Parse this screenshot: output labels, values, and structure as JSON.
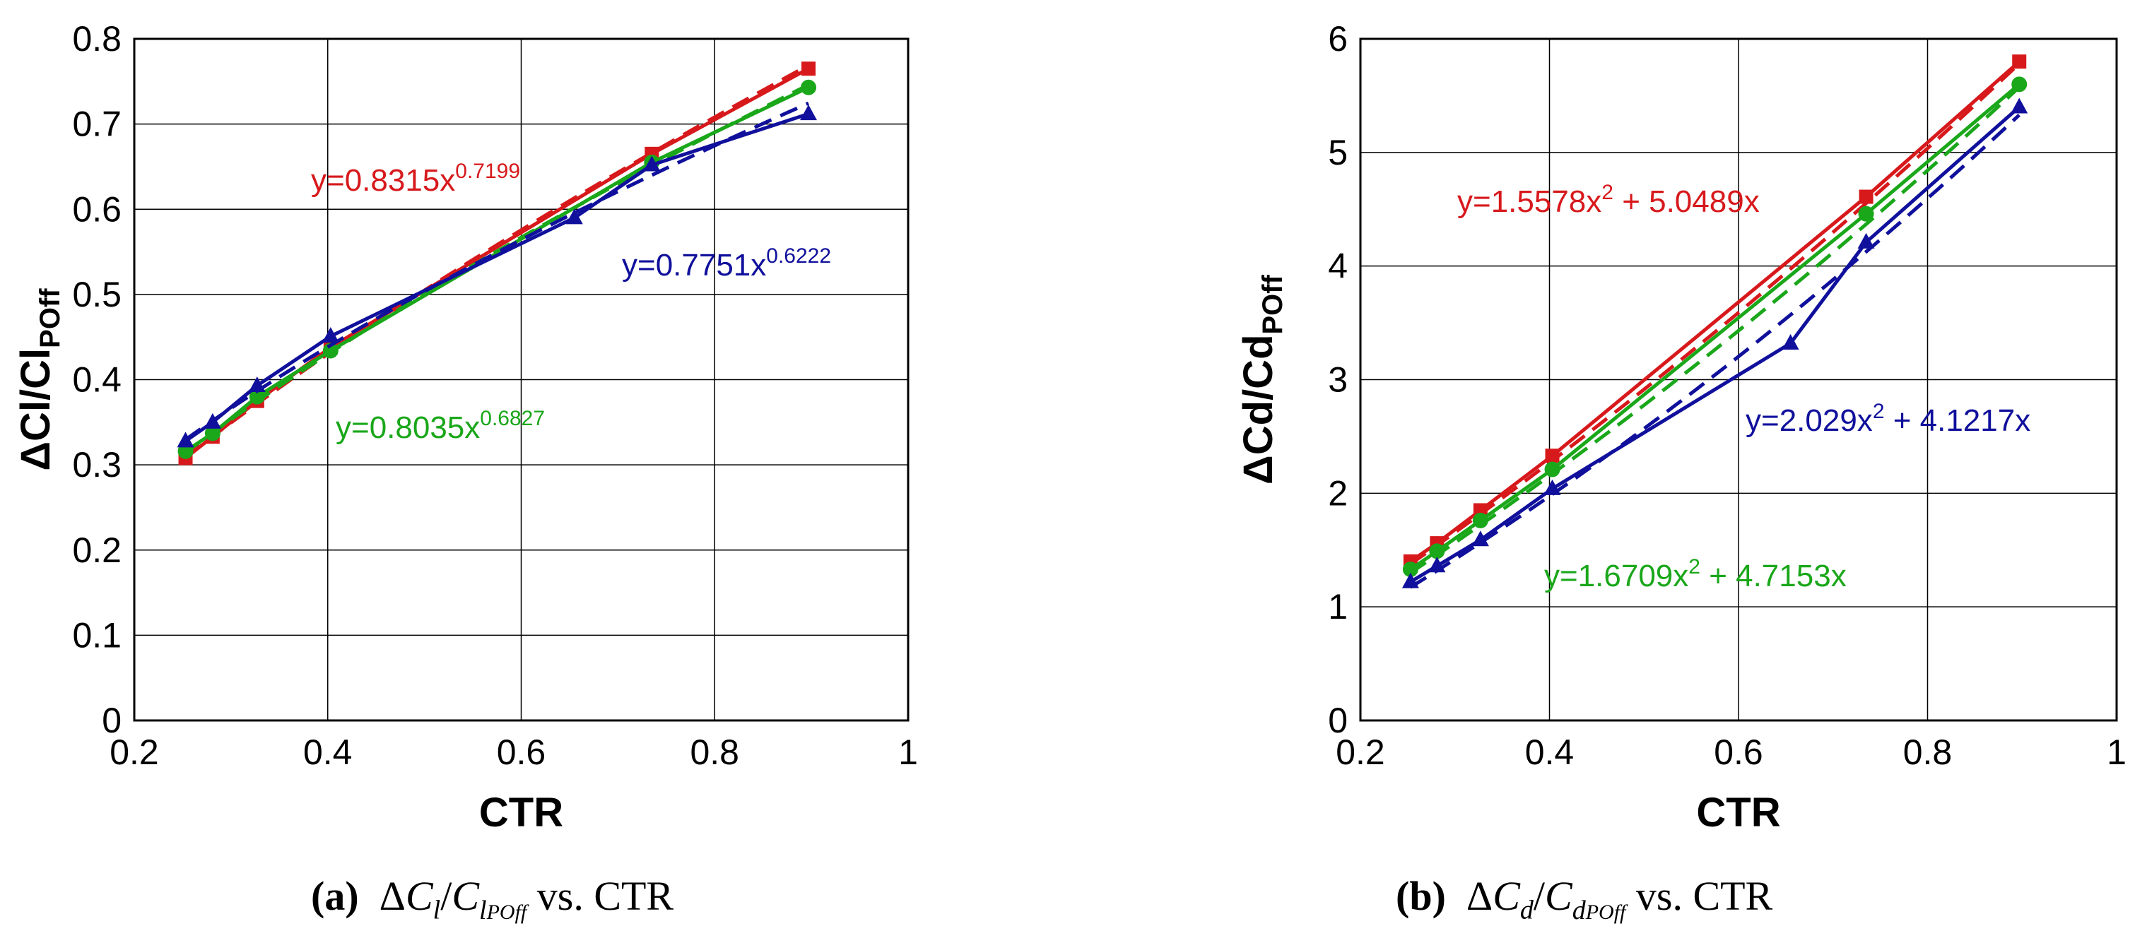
{
  "chart_data": [
    {
      "type": "line",
      "xlabel": "CTR",
      "ylabel_main": "ΔCl/Cl",
      "ylabel_sub": "POff",
      "xlim": [
        0.2,
        1
      ],
      "ylim": [
        0,
        0.8
      ],
      "xticks": [
        "0.2",
        "0.4",
        "0.6",
        "0.8",
        "1"
      ],
      "xtick_values": [
        0.2,
        0.4,
        0.6,
        0.8,
        1.0
      ],
      "yticks": [
        "0",
        "0.1",
        "0.2",
        "0.3",
        "0.4",
        "0.5",
        "0.6",
        "0.7",
        "0.8"
      ],
      "ytick_values": [
        0,
        0.1,
        0.2,
        0.3,
        0.4,
        0.5,
        0.6,
        0.7,
        0.8
      ],
      "grid": true,
      "series": [
        {
          "name": "red",
          "color": "#d7191c",
          "marker": "square",
          "x": [
            0.253,
            0.281,
            0.327,
            0.403,
            0.735,
            0.897
          ],
          "y": [
            0.308,
            0.333,
            0.375,
            0.438,
            0.665,
            0.765
          ],
          "fit": {
            "kind": "power",
            "a": 0.8315,
            "b": 0.7199
          },
          "label": {
            "prefix": "y=0.8315x",
            "exp": "0.7199"
          }
        },
        {
          "name": "green",
          "color": "#1aa71a",
          "marker": "circle",
          "x": [
            0.253,
            0.281,
            0.327,
            0.403,
            0.735,
            0.897
          ],
          "y": [
            0.316,
            0.337,
            0.38,
            0.434,
            0.655,
            0.743
          ],
          "fit": {
            "kind": "power",
            "a": 0.8035,
            "b": 0.6827
          },
          "label": {
            "prefix": "y=0.8035x",
            "exp": "0.6827"
          }
        },
        {
          "name": "blue",
          "color": "#10109c",
          "marker": "triangle",
          "x": [
            0.253,
            0.281,
            0.327,
            0.403,
            0.655,
            0.735,
            0.897
          ],
          "y": [
            0.328,
            0.35,
            0.393,
            0.451,
            0.59,
            0.652,
            0.712
          ],
          "fit": {
            "kind": "power",
            "a": 0.7751,
            "b": 0.6222
          },
          "label": {
            "prefix": "y=0.7751x",
            "exp": "0.6222"
          }
        }
      ],
      "caption": {
        "letter": "(a)",
        "text_suffix": "vs. CTR"
      }
    },
    {
      "type": "line",
      "xlabel": "CTR",
      "ylabel_main": "ΔCd/Cd",
      "ylabel_sub": "POff",
      "xlim": [
        0.2,
        1
      ],
      "ylim": [
        0,
        6
      ],
      "xticks": [
        "0.2",
        "0.4",
        "0.6",
        "0.8",
        "1"
      ],
      "xtick_values": [
        0.2,
        0.4,
        0.6,
        0.8,
        1.0
      ],
      "yticks": [
        "0",
        "1",
        "2",
        "3",
        "4",
        "5",
        "6"
      ],
      "ytick_values": [
        0,
        1,
        2,
        3,
        4,
        5,
        6
      ],
      "grid": true,
      "series": [
        {
          "name": "red",
          "color": "#d7191c",
          "marker": "square",
          "x": [
            0.253,
            0.281,
            0.327,
            0.403,
            0.735,
            0.897
          ],
          "y": [
            1.4,
            1.56,
            1.85,
            2.33,
            4.61,
            5.8
          ],
          "fit": {
            "kind": "quadratic",
            "a": 1.5578,
            "b": 5.0489
          },
          "label": {
            "prefix": "y=1.5578x",
            "exp": "2",
            "suffix": " + 5.0489x"
          }
        },
        {
          "name": "green",
          "color": "#1aa71a",
          "marker": "circle",
          "x": [
            0.253,
            0.281,
            0.327,
            0.403,
            0.735,
            0.897
          ],
          "y": [
            1.33,
            1.49,
            1.76,
            2.21,
            4.46,
            5.6
          ],
          "fit": {
            "kind": "quadratic",
            "a": 1.6709,
            "b": 4.7153
          },
          "label": {
            "prefix": "y=1.6709x",
            "exp": "2",
            "suffix": " + 4.7153x"
          }
        },
        {
          "name": "blue",
          "color": "#10109c",
          "marker": "triangle",
          "x": [
            0.253,
            0.281,
            0.327,
            0.403,
            0.655,
            0.735,
            0.897
          ],
          "y": [
            1.22,
            1.36,
            1.59,
            2.04,
            3.32,
            4.21,
            5.4
          ],
          "fit": {
            "kind": "quadratic",
            "a": 2.029,
            "b": 4.1217
          },
          "label": {
            "prefix": "y=2.029x",
            "exp": "2",
            "suffix": " + 4.1217x"
          }
        }
      ],
      "caption": {
        "letter": "(b)",
        "text_suffix": "vs. CTR"
      }
    }
  ],
  "captions": {
    "a": {
      "letter": "(a)",
      "delta": "Δ",
      "c": "C",
      "sub1": "l",
      "slash": "/",
      "c2": "C",
      "sub2": "l",
      "subsub": "POff",
      "suffix": "vs. CTR"
    },
    "b": {
      "letter": "(b)",
      "delta": "Δ",
      "c": "C",
      "sub1": "d",
      "slash": "/",
      "c2": "C",
      "sub2": "d",
      "subsub": "POff",
      "suffix": "vs. CTR"
    }
  }
}
